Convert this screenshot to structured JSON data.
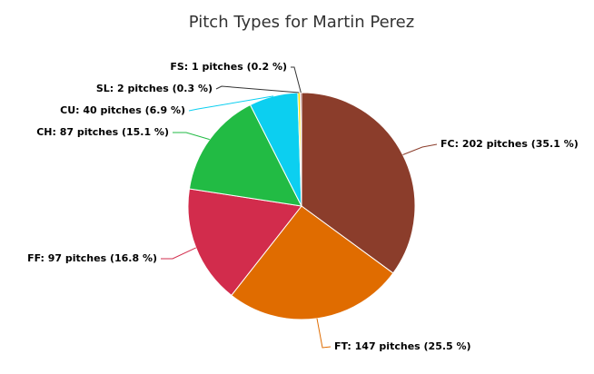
{
  "chart_data": {
    "type": "pie",
    "title": "Pitch Types for Martin Perez",
    "slices": [
      {
        "name": "FC",
        "label": "FC: 202 pitches (35.1 %)",
        "value": 202,
        "percent": 35.1,
        "color": "#8b3d2b"
      },
      {
        "name": "FT",
        "label": "FT: 147 pitches (25.5 %)",
        "value": 147,
        "percent": 25.5,
        "color": "#e06c00"
      },
      {
        "name": "FF",
        "label": "FF: 97 pitches (16.8 %)",
        "value": 97,
        "percent": 16.8,
        "color": "#d22c4c"
      },
      {
        "name": "CH",
        "label": "CH: 87 pitches (15.1 %)",
        "value": 87,
        "percent": 15.1,
        "color": "#22bb44"
      },
      {
        "name": "CU",
        "label": "CU: 40 pitches (6.9 %)",
        "value": 40,
        "percent": 6.9,
        "color": "#0ccff0"
      },
      {
        "name": "SL",
        "label": "SL: 2 pitches (0.3 %)",
        "value": 2,
        "percent": 0.3,
        "color": "#ffdd00"
      },
      {
        "name": "FS",
        "label": "FS: 1 pitches (0.2 %)",
        "value": 1,
        "percent": 0.2,
        "color": "#6a0000"
      }
    ],
    "legend": "none"
  }
}
